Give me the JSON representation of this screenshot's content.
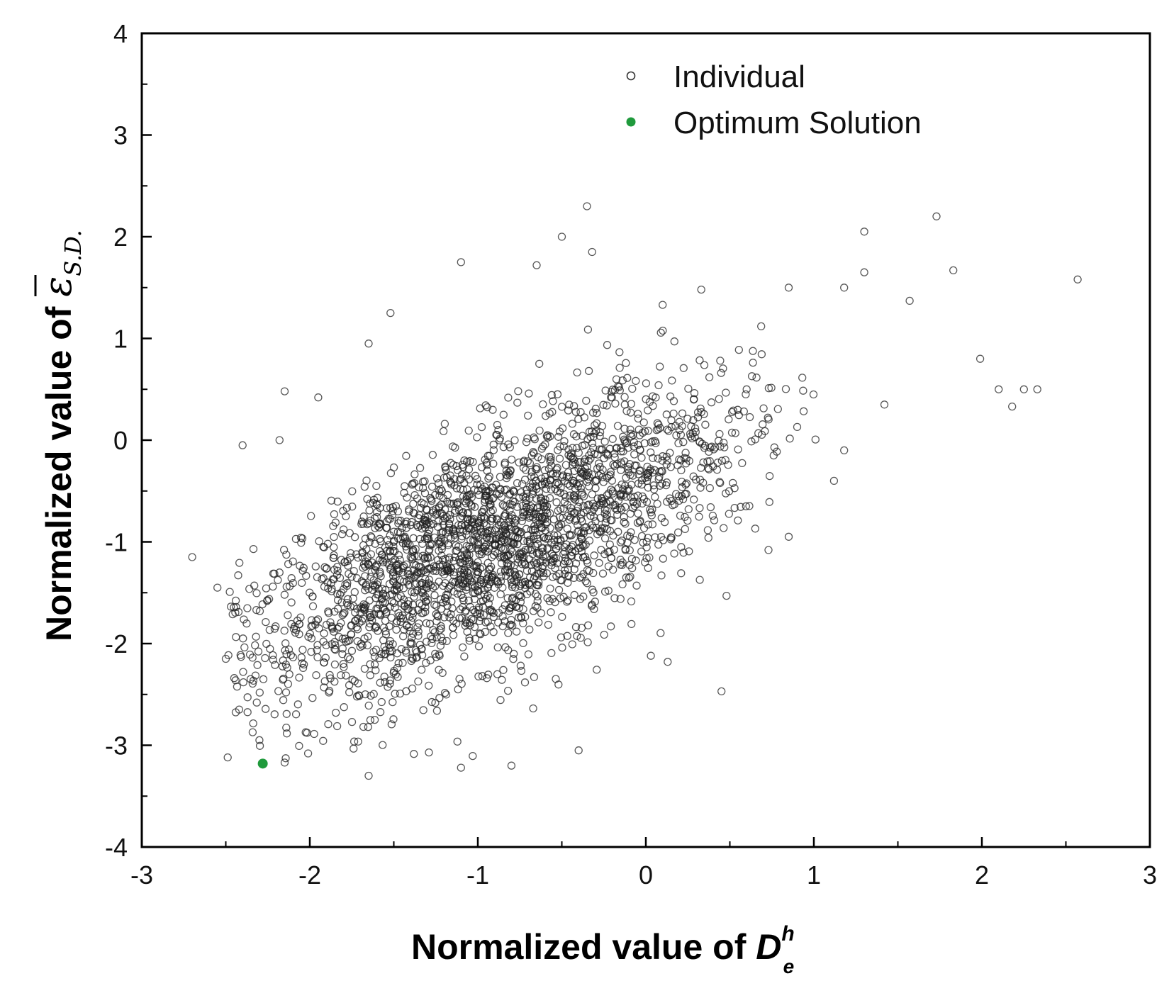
{
  "chart_data": {
    "type": "scatter",
    "title": "",
    "xlabel_text": "Normalized value of ",
    "xlabel_symbol": "D",
    "xlabel_sup": "h",
    "xlabel_sub": "e",
    "ylabel_text": "Normalized value of ",
    "ylabel_symbol": "ε",
    "ylabel_sub": "S.D.",
    "xlim": [
      -3,
      3
    ],
    "ylim": [
      -4,
      4
    ],
    "x_ticks": [
      -3,
      -2,
      -1,
      0,
      1,
      2,
      3
    ],
    "y_ticks": [
      -4,
      -3,
      -2,
      -1,
      0,
      1,
      2,
      3,
      4
    ],
    "x_tick_labels": [
      "-3",
      "-2",
      "-1",
      "0",
      "1",
      "2",
      "3"
    ],
    "y_tick_labels": [
      "-4",
      "-3",
      "-2",
      "-1",
      "0",
      "1",
      "2",
      "3",
      "4"
    ],
    "grid": false,
    "legend_position": "top-right",
    "series": [
      {
        "name": "Individual",
        "marker": "open-circle",
        "color": "#222222",
        "generated_count": 2600,
        "representative_points": [
          [
            -2.7,
            -1.15
          ],
          [
            -2.55,
            -1.45
          ],
          [
            -2.5,
            -2.15
          ],
          [
            -2.4,
            -0.05
          ],
          [
            -2.3,
            -2.95
          ],
          [
            -2.15,
            0.48
          ],
          [
            -2.18,
            0.0
          ],
          [
            -1.95,
            0.42
          ],
          [
            -1.65,
            0.95
          ],
          [
            -1.52,
            1.25
          ],
          [
            -1.1,
            1.75
          ],
          [
            -0.5,
            2.0
          ],
          [
            -0.35,
            2.3
          ],
          [
            -0.32,
            1.85
          ],
          [
            -0.65,
            1.72
          ],
          [
            0.1,
            1.33
          ],
          [
            0.33,
            1.48
          ],
          [
            0.85,
            1.5
          ],
          [
            1.18,
            1.5
          ],
          [
            1.3,
            1.65
          ],
          [
            1.3,
            2.05
          ],
          [
            1.57,
            1.37
          ],
          [
            1.73,
            2.2
          ],
          [
            1.83,
            1.67
          ],
          [
            2.57,
            1.58
          ],
          [
            1.99,
            0.8
          ],
          [
            2.1,
            0.5
          ],
          [
            2.18,
            0.33
          ],
          [
            2.25,
            0.5
          ],
          [
            2.33,
            0.5
          ],
          [
            1.42,
            0.35
          ],
          [
            1.18,
            -0.1
          ],
          [
            1.12,
            -0.4
          ],
          [
            0.85,
            -0.95
          ],
          [
            0.73,
            -1.08
          ],
          [
            0.48,
            -1.53
          ],
          [
            0.45,
            -2.47
          ],
          [
            0.13,
            -2.18
          ],
          [
            0.03,
            -2.12
          ],
          [
            -0.4,
            -3.05
          ],
          [
            -0.8,
            -3.2
          ],
          [
            -1.1,
            -3.22
          ],
          [
            -1.65,
            -3.3
          ],
          [
            -2.15,
            -3.17
          ],
          [
            -1.0,
            -1.2
          ],
          [
            -1.5,
            -1.6
          ],
          [
            -0.3,
            -0.4
          ],
          [
            -1.8,
            -2.2
          ],
          [
            0.2,
            0.1
          ],
          [
            0.6,
            0.5
          ]
        ]
      },
      {
        "name": "Optimum Solution",
        "marker": "filled-circle",
        "color": "#1f9a3c",
        "points": [
          [
            -2.28,
            -3.18
          ]
        ]
      }
    ]
  }
}
